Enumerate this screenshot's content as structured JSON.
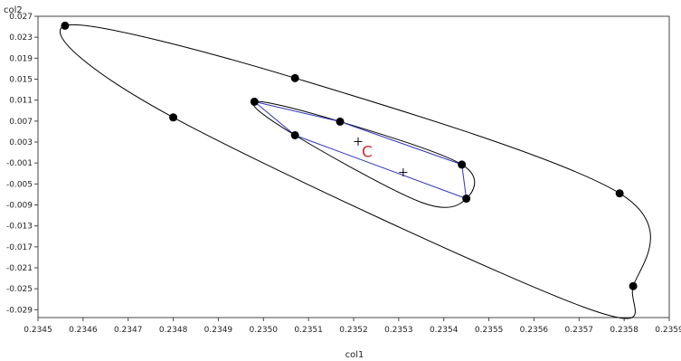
{
  "chart_data": {
    "type": "scatter",
    "title": "",
    "xlabel": "col1",
    "ylabel": "col2",
    "xlim": [
      0.2345,
      0.2359
    ],
    "ylim": [
      -0.0305,
      0.027
    ],
    "grid": false,
    "x_ticks": [
      "0.2345",
      "0.2346",
      "0.2347",
      "0.2348",
      "0.2349",
      "0.2350",
      "0.2351",
      "0.2352",
      "0.2353",
      "0.2354",
      "0.2355",
      "0.2356",
      "0.2357",
      "0.2358",
      "0.2359"
    ],
    "y_ticks": [
      "0.027",
      "0.023",
      "0.019",
      "0.015",
      "0.011",
      "0.007",
      "0.003",
      "-0.001",
      "-0.005",
      "-0.009",
      "-0.013",
      "-0.017",
      "-0.021",
      "-0.025",
      "-0.029"
    ],
    "points": [
      {
        "x": 0.23456,
        "y": 0.0252
      },
      {
        "x": 0.2348,
        "y": 0.0077
      },
      {
        "x": 0.23507,
        "y": 0.0152
      },
      {
        "x": 0.23498,
        "y": 0.0107
      },
      {
        "x": 0.23517,
        "y": 0.0069
      },
      {
        "x": 0.23507,
        "y": 0.0043
      },
      {
        "x": 0.23544,
        "y": -0.0013
      },
      {
        "x": 0.23545,
        "y": -0.0078
      },
      {
        "x": 0.23579,
        "y": -0.0068
      },
      {
        "x": 0.23582,
        "y": -0.0245
      }
    ],
    "centroids": [
      {
        "x": 0.23521,
        "y": 0.0031
      },
      {
        "x": 0.23531,
        "y": -0.0028
      }
    ],
    "outer_curve": [
      {
        "x": 0.23456,
        "y": 0.0252
      },
      {
        "x": 0.23507,
        "y": 0.0152
      },
      {
        "x": 0.23579,
        "y": -0.0068
      },
      {
        "x": 0.23582,
        "y": -0.0245
      },
      {
        "x": 0.23571,
        "y": -0.0285
      },
      {
        "x": 0.2348,
        "y": 0.0077
      }
    ],
    "inner_curve": [
      {
        "x": 0.23498,
        "y": 0.0107
      },
      {
        "x": 0.23517,
        "y": 0.0069
      },
      {
        "x": 0.23544,
        "y": -0.0013
      },
      {
        "x": 0.23545,
        "y": -0.0078
      },
      {
        "x": 0.23535,
        "y": -0.0085
      },
      {
        "x": 0.23507,
        "y": 0.0043
      }
    ],
    "hull_polygon": [
      {
        "x": 0.23498,
        "y": 0.0107
      },
      {
        "x": 0.23517,
        "y": 0.0069
      },
      {
        "x": 0.23544,
        "y": -0.0013
      },
      {
        "x": 0.23545,
        "y": -0.0078
      },
      {
        "x": 0.23507,
        "y": 0.0043
      }
    ],
    "annotation": {
      "text": "C",
      "x": 0.23523,
      "y": 0.0012
    },
    "colors": {
      "curve": "#000000",
      "hull": "#3333bb",
      "point": "#000000",
      "annotation": "#cc3333"
    }
  }
}
